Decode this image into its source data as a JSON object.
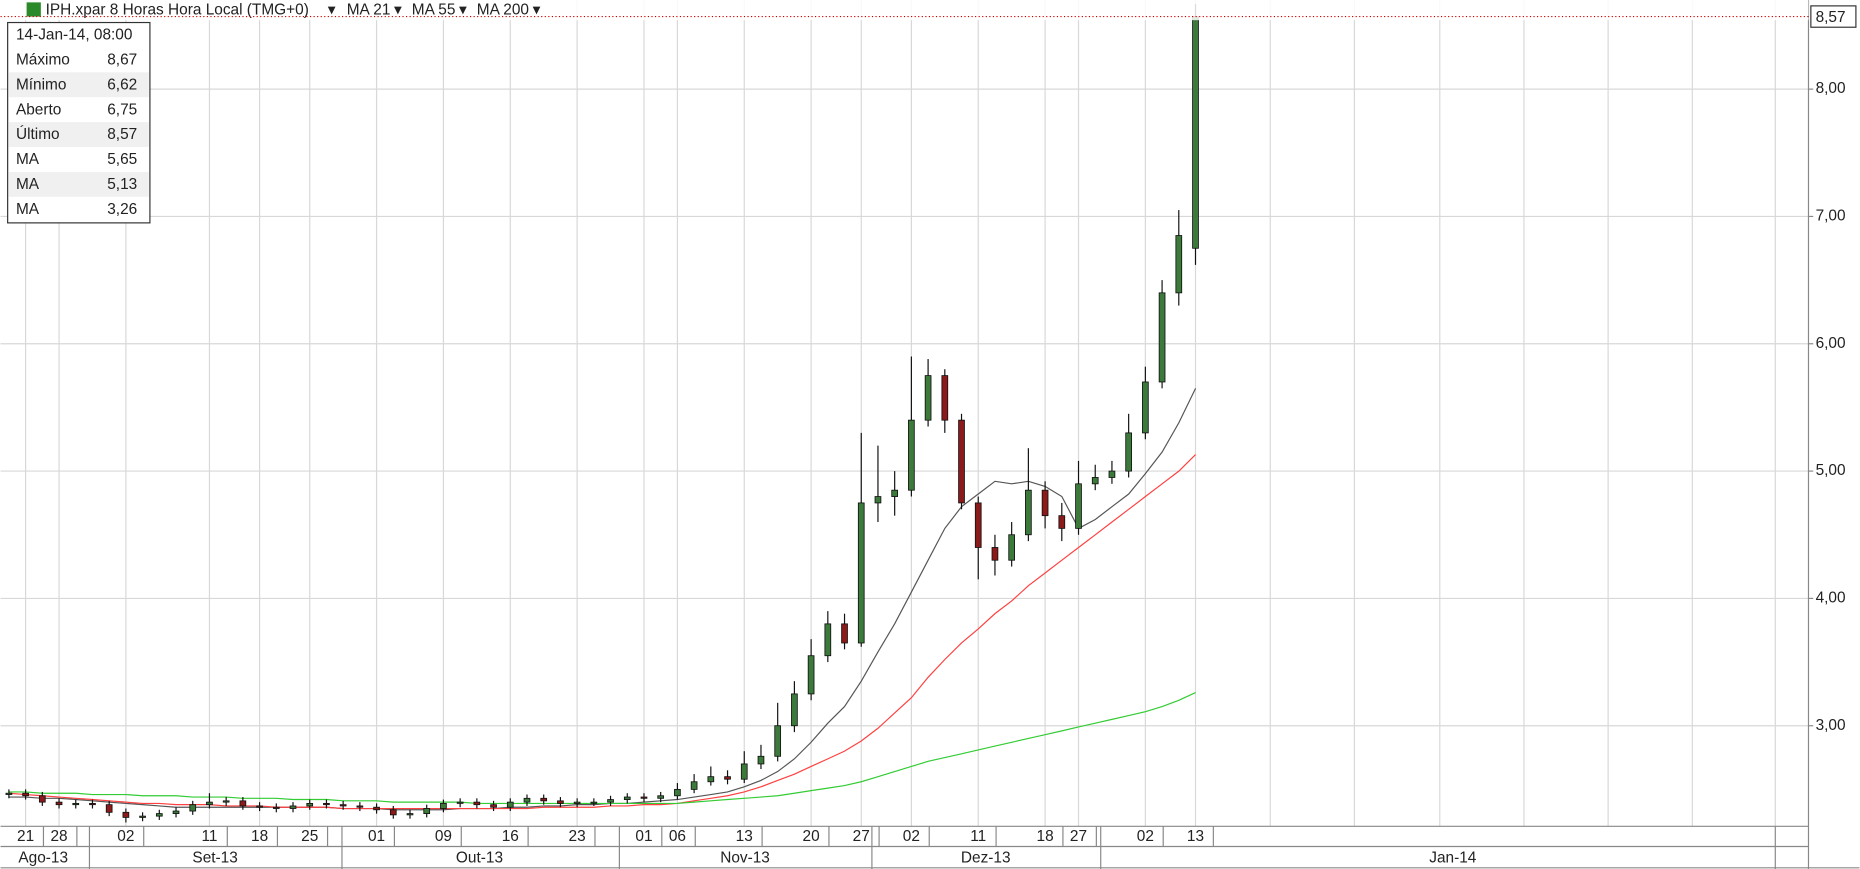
{
  "chart_data": {
    "type": "candlestick",
    "title": "IPH.xpar 8 Horas Hora Local (TMG+0)",
    "categories": [
      null,
      "21",
      null,
      "28",
      null,
      null,
      null,
      "02",
      null,
      null,
      null,
      null,
      "11",
      null,
      null,
      "18",
      null,
      null,
      "25",
      null,
      null,
      null,
      "01",
      null,
      null,
      null,
      "09",
      null,
      null,
      null,
      "16",
      null,
      null,
      null,
      "23",
      null,
      null,
      null,
      "01",
      null,
      "06",
      null,
      null,
      null,
      "13",
      null,
      null,
      null,
      "20",
      null,
      null,
      "27",
      null,
      null,
      "02",
      null,
      null,
      null,
      "11",
      null,
      null,
      null,
      "18",
      null,
      "27",
      null,
      null,
      null,
      "02",
      null,
      null,
      "13"
    ],
    "open": [
      2.46,
      2.47,
      2.45,
      2.4,
      2.38,
      2.39,
      2.38,
      2.32,
      2.28,
      2.29,
      2.31,
      2.33,
      2.38,
      2.4,
      2.41,
      2.37,
      2.36,
      2.35,
      2.37,
      2.39,
      2.38,
      2.37,
      2.36,
      2.34,
      2.3,
      2.31,
      2.35,
      2.39,
      2.4,
      2.38,
      2.36,
      2.4,
      2.43,
      2.41,
      2.39,
      2.4,
      2.4,
      2.42,
      2.44,
      2.43,
      2.45,
      2.5,
      2.56,
      2.6,
      2.58,
      2.7,
      2.76,
      3.0,
      3.25,
      3.55,
      3.8,
      3.65,
      4.75,
      4.8,
      4.85,
      5.4,
      5.75,
      5.4,
      4.75,
      4.4,
      4.3,
      4.5,
      4.85,
      4.65,
      4.55,
      4.9,
      4.95,
      5.0,
      5.3,
      5.7,
      6.4,
      6.75
    ],
    "high": [
      2.5,
      2.5,
      2.48,
      2.43,
      2.42,
      2.42,
      2.41,
      2.35,
      2.32,
      2.34,
      2.36,
      2.41,
      2.47,
      2.44,
      2.44,
      2.4,
      2.39,
      2.4,
      2.42,
      2.42,
      2.41,
      2.4,
      2.39,
      2.37,
      2.34,
      2.38,
      2.42,
      2.43,
      2.43,
      2.41,
      2.43,
      2.46,
      2.46,
      2.44,
      2.43,
      2.43,
      2.45,
      2.47,
      2.47,
      2.48,
      2.55,
      2.62,
      2.68,
      2.65,
      2.8,
      2.85,
      3.18,
      3.35,
      3.68,
      3.9,
      3.88,
      5.3,
      5.2,
      5.0,
      5.9,
      5.88,
      5.8,
      5.45,
      4.8,
      4.5,
      4.6,
      5.18,
      4.92,
      4.75,
      5.08,
      5.05,
      5.08,
      5.45,
      5.82,
      6.5,
      7.05,
      8.67
    ],
    "low": [
      2.43,
      2.42,
      2.37,
      2.35,
      2.35,
      2.35,
      2.29,
      2.24,
      2.25,
      2.26,
      2.28,
      2.3,
      2.35,
      2.37,
      2.34,
      2.33,
      2.32,
      2.32,
      2.34,
      2.35,
      2.34,
      2.33,
      2.31,
      2.27,
      2.27,
      2.28,
      2.32,
      2.36,
      2.35,
      2.33,
      2.33,
      2.37,
      2.38,
      2.36,
      2.36,
      2.37,
      2.37,
      2.39,
      2.4,
      2.4,
      2.42,
      2.47,
      2.53,
      2.54,
      2.55,
      2.66,
      2.72,
      2.95,
      3.2,
      3.5,
      3.6,
      3.62,
      4.6,
      4.65,
      4.8,
      5.35,
      5.3,
      4.7,
      4.15,
      4.18,
      4.25,
      4.45,
      4.55,
      4.45,
      4.5,
      4.85,
      4.9,
      4.95,
      5.25,
      5.65,
      6.3,
      6.62
    ],
    "close": [
      2.47,
      2.45,
      2.4,
      2.38,
      2.39,
      2.38,
      2.32,
      2.28,
      2.29,
      2.31,
      2.33,
      2.38,
      2.4,
      2.41,
      2.37,
      2.36,
      2.35,
      2.37,
      2.39,
      2.38,
      2.37,
      2.36,
      2.34,
      2.3,
      2.31,
      2.35,
      2.39,
      2.4,
      2.38,
      2.36,
      2.4,
      2.43,
      2.41,
      2.39,
      2.4,
      2.4,
      2.42,
      2.44,
      2.43,
      2.45,
      2.5,
      2.56,
      2.6,
      2.58,
      2.7,
      2.76,
      3.0,
      3.25,
      3.55,
      3.8,
      3.65,
      4.75,
      4.8,
      4.85,
      5.4,
      5.75,
      5.4,
      4.75,
      4.4,
      4.3,
      4.5,
      4.85,
      4.65,
      4.55,
      4.9,
      4.95,
      5.0,
      5.3,
      5.7,
      6.4,
      6.85,
      8.57
    ],
    "up_color": "#3c7a3c",
    "down_color": "#8b1a1a",
    "series": [
      {
        "name": "MA 21",
        "color": "#555555",
        "values": [
          2.44,
          2.44,
          2.43,
          2.43,
          2.42,
          2.41,
          2.4,
          2.39,
          2.38,
          2.37,
          2.36,
          2.36,
          2.36,
          2.36,
          2.36,
          2.36,
          2.36,
          2.36,
          2.36,
          2.36,
          2.35,
          2.35,
          2.35,
          2.34,
          2.34,
          2.34,
          2.34,
          2.35,
          2.35,
          2.35,
          2.36,
          2.36,
          2.37,
          2.37,
          2.38,
          2.38,
          2.39,
          2.39,
          2.4,
          2.41,
          2.42,
          2.44,
          2.46,
          2.48,
          2.52,
          2.57,
          2.64,
          2.74,
          2.87,
          3.02,
          3.15,
          3.35,
          3.58,
          3.8,
          4.05,
          4.3,
          4.55,
          4.72,
          4.82,
          4.92,
          4.9,
          4.92,
          4.88,
          4.8,
          4.55,
          4.62,
          4.72,
          4.82,
          4.98,
          5.15,
          5.38,
          5.65
        ]
      },
      {
        "name": "MA 55",
        "color": "#ff4040",
        "values": [
          2.47,
          2.46,
          2.45,
          2.44,
          2.43,
          2.42,
          2.41,
          2.4,
          2.39,
          2.39,
          2.38,
          2.38,
          2.38,
          2.37,
          2.37,
          2.37,
          2.36,
          2.36,
          2.36,
          2.36,
          2.35,
          2.35,
          2.35,
          2.35,
          2.35,
          2.35,
          2.35,
          2.35,
          2.35,
          2.35,
          2.35,
          2.35,
          2.36,
          2.36,
          2.36,
          2.36,
          2.37,
          2.37,
          2.38,
          2.38,
          2.39,
          2.41,
          2.43,
          2.45,
          2.48,
          2.52,
          2.57,
          2.62,
          2.68,
          2.74,
          2.8,
          2.88,
          2.98,
          3.1,
          3.22,
          3.38,
          3.52,
          3.65,
          3.76,
          3.88,
          3.98,
          4.1,
          4.2,
          4.3,
          4.4,
          4.5,
          4.6,
          4.7,
          4.8,
          4.9,
          5.0,
          5.13
        ]
      },
      {
        "name": "MA 200",
        "color": "#33cc33",
        "values": [
          2.48,
          2.48,
          2.47,
          2.47,
          2.47,
          2.46,
          2.46,
          2.46,
          2.45,
          2.45,
          2.45,
          2.44,
          2.44,
          2.44,
          2.43,
          2.43,
          2.43,
          2.42,
          2.42,
          2.42,
          2.41,
          2.41,
          2.41,
          2.4,
          2.4,
          2.4,
          2.4,
          2.4,
          2.39,
          2.39,
          2.39,
          2.39,
          2.39,
          2.39,
          2.39,
          2.39,
          2.39,
          2.39,
          2.39,
          2.39,
          2.39,
          2.4,
          2.41,
          2.42,
          2.43,
          2.44,
          2.45,
          2.47,
          2.49,
          2.51,
          2.53,
          2.56,
          2.6,
          2.64,
          2.68,
          2.72,
          2.75,
          2.78,
          2.81,
          2.84,
          2.87,
          2.9,
          2.93,
          2.96,
          2.99,
          3.02,
          3.05,
          3.08,
          3.11,
          3.15,
          3.2,
          3.26
        ]
      }
    ],
    "ylim": [
      2.21,
      8.7
    ],
    "yticks": [
      {
        "value": 3,
        "label": "3,00"
      },
      {
        "value": 4,
        "label": "4,00"
      },
      {
        "value": 5,
        "label": "5,00"
      },
      {
        "value": 6,
        "label": "6,00"
      },
      {
        "value": 7,
        "label": "7,00"
      },
      {
        "value": 8,
        "label": "8,00"
      }
    ],
    "last_price_label": "8,57",
    "months": [
      "Ago-13",
      "Set-13",
      "Out-13",
      "Nov-13",
      "Dez-13",
      "Jan-14"
    ],
    "grid": true
  },
  "info_panel": {
    "date": "14-Jan-14, 08:00",
    "rows": [
      {
        "label": "Máximo",
        "value": "8,67"
      },
      {
        "label": "Mínimo",
        "value": "6,62"
      },
      {
        "label": "Aberto",
        "value": "6,75"
      },
      {
        "label": "Último",
        "value": "8,57"
      },
      {
        "label": "MA",
        "value": "5,65"
      },
      {
        "label": "MA",
        "value": "5,13"
      },
      {
        "label": "MA",
        "value": "3,26"
      }
    ]
  }
}
